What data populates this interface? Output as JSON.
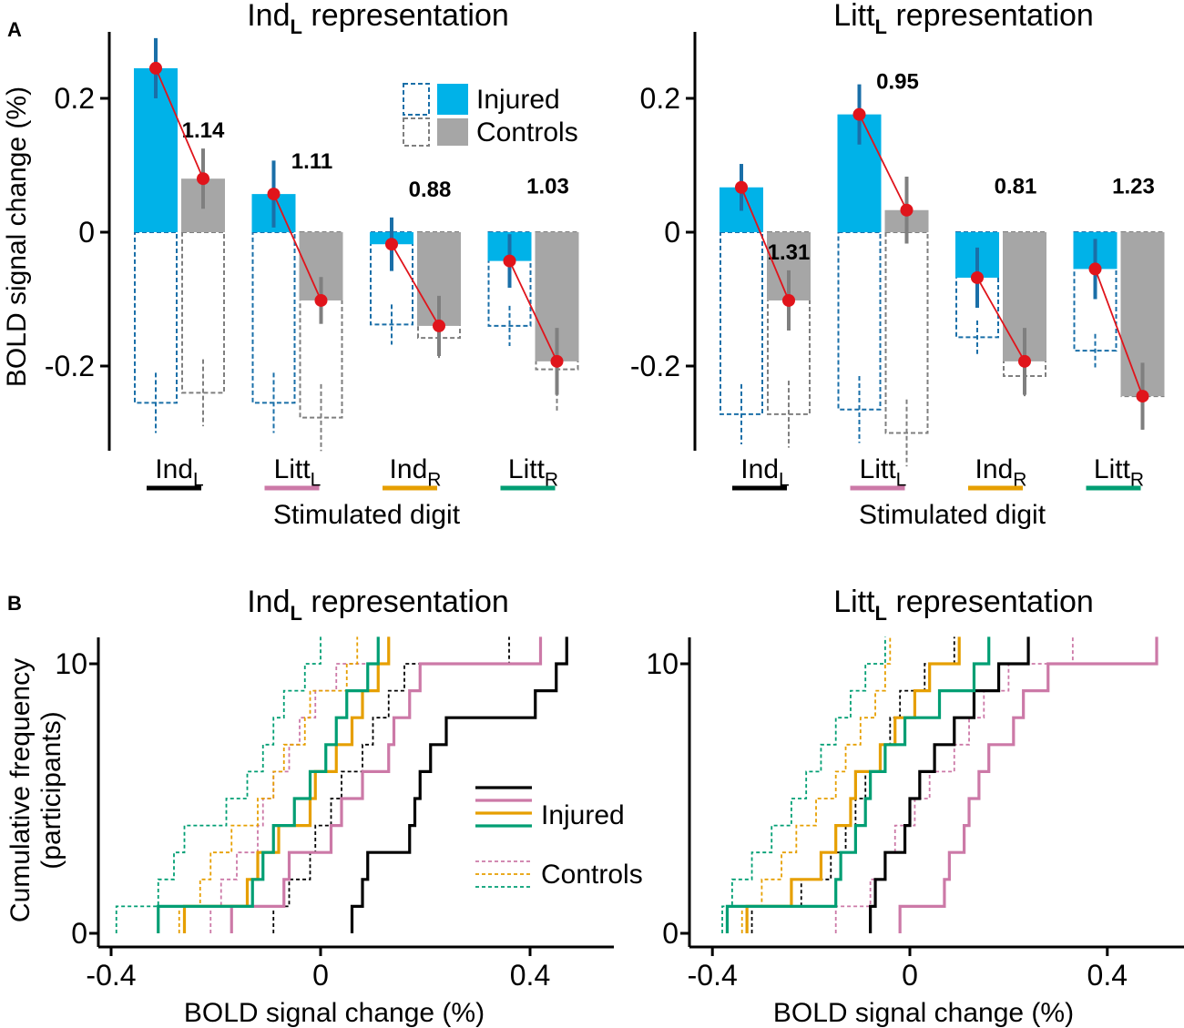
{
  "figure": {
    "panel_a_label": "A",
    "panel_b_label": "B",
    "colors": {
      "injured": "#00b2e8",
      "injured_dark": "#1a6fa8",
      "controls": "#a6a6a6",
      "controls_dark": "#7f7f7f",
      "marker": "#e0141b",
      "ind_l": "#000000",
      "litt_l": "#cc79a7",
      "ind_r": "#e69f00",
      "litt_r": "#009e73"
    }
  },
  "chart_data": [
    {
      "id": "A1",
      "type": "bar",
      "title_main": "Ind",
      "title_sub": "L",
      "title_rest": " representation",
      "ylabel": "BOLD signal change (%)",
      "xlabel": "Stimulated digit",
      "ylim": [
        -0.33,
        0.3
      ],
      "yticks": [
        0.2,
        0,
        -0.2
      ],
      "ytick_labels": [
        "0.2",
        "0",
        "-0.2"
      ],
      "categories": [
        {
          "main": "Ind",
          "sub": "L",
          "color_key": "ind_l"
        },
        {
          "main": "Litt",
          "sub": "L",
          "color_key": "litt_l"
        },
        {
          "main": "Ind",
          "sub": "R",
          "color_key": "ind_r"
        },
        {
          "main": "Litt",
          "sub": "R",
          "color_key": "litt_r"
        }
      ],
      "series": [
        {
          "name": "Injured",
          "values": [
            0.245,
            0.057,
            -0.018,
            -0.043
          ],
          "err": [
            0.045,
            0.05,
            0.04,
            0.04
          ],
          "outline": [
            -0.255,
            -0.255,
            -0.138,
            -0.14
          ],
          "outline_err": [
            0.045,
            0.045,
            0.03,
            0.03
          ]
        },
        {
          "name": "Controls",
          "values": [
            0.08,
            -0.102,
            -0.14,
            -0.193
          ],
          "err": [
            0.045,
            0.035,
            0.045,
            0.05
          ],
          "outline": [
            -0.24,
            -0.277,
            -0.158,
            -0.205
          ],
          "outline_err": [
            0.05,
            0.05,
            0.03,
            0.065
          ]
        }
      ],
      "ratios": [
        "1.14",
        "1.11",
        "0.88",
        "1.03"
      ],
      "legend": [
        "Injured",
        "Controls"
      ]
    },
    {
      "id": "A2",
      "type": "bar",
      "title_main": "Litt",
      "title_sub": "L",
      "title_rest": " representation",
      "xlabel": "Stimulated digit",
      "ylim": [
        -0.33,
        0.3
      ],
      "yticks": [
        0.2,
        0,
        -0.2
      ],
      "ytick_labels": [
        "0.2",
        "0",
        "-0.2"
      ],
      "categories": [
        {
          "main": "Ind",
          "sub": "L",
          "color_key": "ind_l"
        },
        {
          "main": "Litt",
          "sub": "L",
          "color_key": "litt_l"
        },
        {
          "main": "Ind",
          "sub": "R",
          "color_key": "ind_r"
        },
        {
          "main": "Litt",
          "sub": "R",
          "color_key": "litt_r"
        }
      ],
      "series": [
        {
          "name": "Injured",
          "values": [
            0.067,
            0.176,
            -0.068,
            -0.055
          ],
          "err": [
            0.035,
            0.045,
            0.045,
            0.045
          ],
          "outline": [
            -0.272,
            -0.265,
            -0.157,
            -0.177
          ],
          "outline_err": [
            0.045,
            0.05,
            0.025,
            0.025
          ]
        },
        {
          "name": "Controls",
          "values": [
            -0.102,
            0.033,
            -0.193,
            -0.245
          ],
          "err": [
            0.045,
            0.05,
            0.05,
            0.05
          ],
          "outline": [
            -0.272,
            -0.3,
            -0.215,
            -0.245
          ],
          "outline_err": [
            0.05,
            0.05,
            0.03,
            0.05
          ]
        }
      ],
      "ratios": [
        "1.31",
        "0.95",
        "0.81",
        "1.23"
      ]
    },
    {
      "id": "B1",
      "type": "line",
      "subtype": "cumulative-step",
      "title_main": "Ind",
      "title_sub": "L",
      "title_rest": " representation",
      "ylabel_line1": "Cumulative frequency",
      "ylabel_line2": "(participants)",
      "xlabel": "BOLD signal change (%)",
      "xlim": [
        -0.44,
        0.56
      ],
      "ylim": [
        0,
        11
      ],
      "xticks": [
        -0.4,
        0,
        0.4
      ],
      "xtick_labels": [
        "-0.4",
        "0",
        "0.4"
      ],
      "yticks": [
        0,
        10
      ],
      "ytick_labels": [
        "0",
        "10"
      ],
      "legend": [
        "Injured",
        "Controls"
      ],
      "series": [
        {
          "name": "Injured IndL",
          "group": "injured",
          "color_key": "ind_l",
          "values": [
            0.06,
            0.08,
            0.09,
            0.17,
            0.18,
            0.19,
            0.21,
            0.24,
            0.41,
            0.45,
            0.47
          ]
        },
        {
          "name": "Injured LittL",
          "group": "injured",
          "color_key": "litt_l",
          "values": [
            -0.17,
            -0.07,
            -0.06,
            0.02,
            0.04,
            0.08,
            0.13,
            0.14,
            0.17,
            0.19,
            0.42
          ]
        },
        {
          "name": "Injured IndR",
          "group": "injured",
          "color_key": "ind_r",
          "values": [
            -0.26,
            -0.14,
            -0.12,
            -0.08,
            -0.02,
            -0.01,
            0.03,
            0.06,
            0.08,
            0.11,
            0.13
          ]
        },
        {
          "name": "Injured LittR",
          "group": "injured",
          "color_key": "litt_r",
          "values": [
            -0.31,
            -0.13,
            -0.11,
            -0.09,
            -0.05,
            -0.02,
            0.01,
            0.03,
            0.05,
            0.09,
            0.11
          ]
        },
        {
          "name": "Controls IndL",
          "group": "controls",
          "color_key": "ind_l",
          "values": [
            -0.09,
            -0.06,
            -0.02,
            -0.01,
            0.02,
            0.04,
            0.08,
            0.1,
            0.13,
            0.16,
            0.36
          ]
        },
        {
          "name": "Controls LittL",
          "group": "controls",
          "color_key": "litt_l",
          "values": [
            -0.21,
            -0.19,
            -0.16,
            -0.12,
            -0.11,
            -0.09,
            -0.06,
            -0.04,
            -0.01,
            0.03,
            0.13
          ]
        },
        {
          "name": "Controls IndR",
          "group": "controls",
          "color_key": "ind_r",
          "values": [
            -0.27,
            -0.23,
            -0.21,
            -0.17,
            -0.12,
            -0.09,
            -0.07,
            -0.03,
            -0.02,
            0.05,
            0.07
          ]
        },
        {
          "name": "Controls LittR",
          "group": "controls",
          "color_key": "litt_r",
          "values": [
            -0.39,
            -0.31,
            -0.28,
            -0.26,
            -0.18,
            -0.14,
            -0.11,
            -0.09,
            -0.07,
            -0.03,
            0.0
          ]
        }
      ]
    },
    {
      "id": "B2",
      "type": "line",
      "subtype": "cumulative-step",
      "title_main": "Litt",
      "title_sub": "L",
      "title_rest": " representation",
      "xlabel": "BOLD signal change (%)",
      "xlim": [
        -0.44,
        0.56
      ],
      "ylim": [
        0,
        11
      ],
      "xticks": [
        -0.4,
        0,
        0.4
      ],
      "xtick_labels": [
        "-0.4",
        "0",
        "0.4"
      ],
      "yticks": [
        0,
        10
      ],
      "ytick_labels": [
        "0",
        "10"
      ],
      "series": [
        {
          "name": "Injured IndL",
          "group": "injured",
          "color_key": "ind_l",
          "values": [
            -0.08,
            -0.07,
            -0.05,
            -0.01,
            0.0,
            0.02,
            0.05,
            0.09,
            0.13,
            0.18,
            0.24
          ]
        },
        {
          "name": "Injured LittL",
          "group": "injured",
          "color_key": "litt_l",
          "values": [
            -0.02,
            0.07,
            0.08,
            0.11,
            0.12,
            0.14,
            0.16,
            0.21,
            0.23,
            0.28,
            0.5
          ]
        },
        {
          "name": "Injured IndR",
          "group": "injured",
          "color_key": "ind_r",
          "values": [
            -0.33,
            -0.24,
            -0.18,
            -0.15,
            -0.12,
            -0.11,
            -0.06,
            -0.03,
            0.01,
            0.04,
            0.1
          ]
        },
        {
          "name": "Injured LittR",
          "group": "injured",
          "color_key": "litt_r",
          "values": [
            -0.37,
            -0.15,
            -0.14,
            -0.11,
            -0.09,
            -0.08,
            -0.05,
            -0.01,
            0.06,
            0.13,
            0.16
          ]
        },
        {
          "name": "Controls IndL",
          "group": "controls",
          "color_key": "ind_l",
          "values": [
            -0.32,
            -0.22,
            -0.16,
            -0.13,
            -0.11,
            -0.09,
            -0.06,
            -0.04,
            -0.02,
            0.03,
            0.09
          ]
        },
        {
          "name": "Controls LittL",
          "group": "controls",
          "color_key": "litt_l",
          "values": [
            -0.15,
            -0.08,
            -0.05,
            -0.03,
            0.01,
            0.04,
            0.09,
            0.12,
            0.15,
            0.2,
            0.33
          ]
        },
        {
          "name": "Controls IndR",
          "group": "controls",
          "color_key": "ind_r",
          "values": [
            -0.34,
            -0.3,
            -0.26,
            -0.23,
            -0.19,
            -0.15,
            -0.13,
            -0.1,
            -0.07,
            -0.05,
            -0.04
          ]
        },
        {
          "name": "Controls LittR",
          "group": "controls",
          "color_key": "litt_r",
          "values": [
            -0.38,
            -0.36,
            -0.32,
            -0.28,
            -0.24,
            -0.21,
            -0.18,
            -0.15,
            -0.12,
            -0.09,
            -0.05
          ]
        }
      ]
    }
  ]
}
